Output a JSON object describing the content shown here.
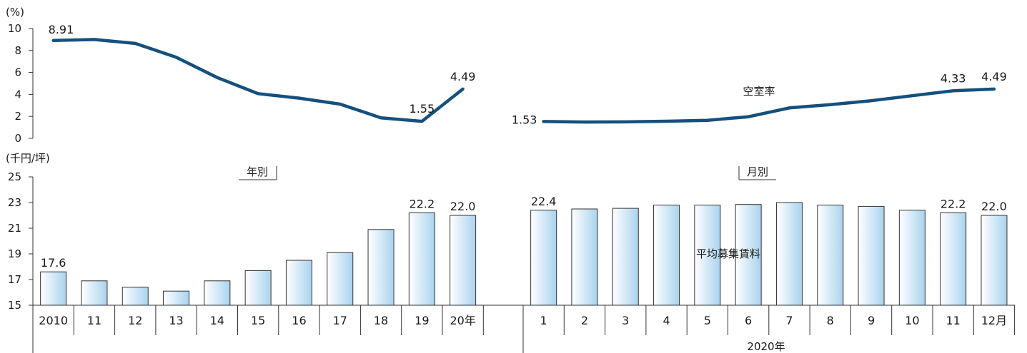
{
  "chart_data": [
    {
      "type": "line",
      "unit_label": "(%)",
      "series_label": "空室率",
      "ylim": [
        0,
        10
      ],
      "yticks": [
        0,
        2,
        4,
        6,
        8,
        10
      ],
      "color": "#15507d",
      "segments": [
        {
          "name": "年別",
          "x": [
            "2010",
            "11",
            "12",
            "13",
            "14",
            "15",
            "16",
            "17",
            "18",
            "19",
            "20年"
          ],
          "values": [
            8.91,
            9.0,
            8.64,
            7.38,
            5.54,
            4.07,
            3.66,
            3.12,
            1.87,
            1.55,
            4.49
          ],
          "data_labels": {
            "0": "8.91",
            "9": "1.55",
            "10": "4.49"
          }
        },
        {
          "name": "月別",
          "x": [
            "1",
            "2",
            "3",
            "4",
            "5",
            "6",
            "7",
            "8",
            "9",
            "10",
            "11",
            "12月"
          ],
          "values": [
            1.53,
            1.49,
            1.5,
            1.56,
            1.64,
            1.97,
            2.77,
            3.07,
            3.43,
            3.88,
            4.33,
            4.49
          ],
          "data_labels": {
            "0": "1.53",
            "10": "4.33",
            "11": "4.49"
          }
        }
      ]
    },
    {
      "type": "bar",
      "unit_label": "(千円/坪)",
      "series_label": "平均募集賃料",
      "ylim": [
        15,
        25
      ],
      "yticks": [
        15,
        17,
        19,
        21,
        23,
        25
      ],
      "bar_gradient": [
        "#ffffff",
        "#a9d3ee"
      ],
      "bar_stroke": "#333333",
      "segments": [
        {
          "name": "年別",
          "x": [
            "2010",
            "11",
            "12",
            "13",
            "14",
            "15",
            "16",
            "17",
            "18",
            "19",
            "20年"
          ],
          "values": [
            17.6,
            16.9,
            16.4,
            16.1,
            16.9,
            17.7,
            18.5,
            19.1,
            20.9,
            22.2,
            22.0
          ],
          "data_labels": {
            "0": "17.6",
            "9": "22.2",
            "10": "22.0"
          }
        },
        {
          "name": "月別",
          "x": [
            "1",
            "2",
            "3",
            "4",
            "5",
            "6",
            "7",
            "8",
            "9",
            "10",
            "11",
            "12月"
          ],
          "values": [
            22.4,
            22.5,
            22.55,
            22.8,
            22.8,
            22.85,
            23.0,
            22.8,
            22.7,
            22.4,
            22.2,
            22.0
          ],
          "data_labels": {
            "0": "22.4",
            "10": "22.2",
            "11": "22.0"
          }
        }
      ]
    }
  ],
  "section_labels": {
    "annual": "年別",
    "monthly": "月別"
  },
  "year_label": "2020年"
}
